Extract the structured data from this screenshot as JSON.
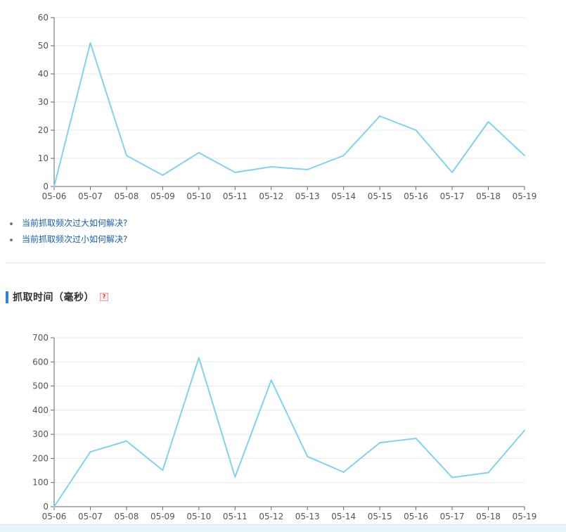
{
  "charts": {
    "crawl_frequency": {
      "type": "line",
      "x": [
        "05-06",
        "05-07",
        "05-08",
        "05-09",
        "05-10",
        "05-11",
        "05-12",
        "05-13",
        "05-14",
        "05-15",
        "05-16",
        "05-17",
        "05-18",
        "05-19"
      ],
      "series": [
        {
          "values": [
            0,
            51,
            11,
            4,
            12,
            5,
            7,
            6,
            11,
            25,
            20,
            5,
            23,
            11
          ]
        }
      ],
      "y_ticks": [
        0,
        10,
        20,
        30,
        40,
        50,
        60
      ],
      "ylim": [
        0,
        60
      ],
      "grid": true,
      "line_color": "#7fd3f1"
    },
    "crawl_time": {
      "type": "line",
      "x": [
        "05-06",
        "05-07",
        "05-08",
        "05-09",
        "05-10",
        "05-11",
        "05-12",
        "05-13",
        "05-14",
        "05-15",
        "05-16",
        "05-17",
        "05-18",
        "05-19"
      ],
      "series": [
        {
          "values": [
            0,
            227,
            272,
            151,
            617,
            123,
            524,
            208,
            143,
            265,
            283,
            121,
            141,
            316
          ]
        }
      ],
      "y_ticks": [
        0,
        100,
        200,
        300,
        400,
        500,
        600,
        700
      ],
      "ylim": [
        0,
        700
      ],
      "grid": true,
      "line_color": "#7fd3f1"
    }
  },
  "chart_data": [
    {
      "type": "line",
      "x": [
        "05-06",
        "05-07",
        "05-08",
        "05-09",
        "05-10",
        "05-11",
        "05-12",
        "05-13",
        "05-14",
        "05-15",
        "05-16",
        "05-17",
        "05-18",
        "05-19"
      ],
      "series": [
        {
          "values": [
            0,
            51,
            11,
            4,
            12,
            5,
            7,
            6,
            11,
            25,
            20,
            5,
            23,
            11
          ]
        }
      ],
      "ylim": [
        0,
        60
      ],
      "grid": true
    },
    {
      "type": "line",
      "title": "抓取时间（毫秒）",
      "x": [
        "05-06",
        "05-07",
        "05-08",
        "05-09",
        "05-10",
        "05-11",
        "05-12",
        "05-13",
        "05-14",
        "05-15",
        "05-16",
        "05-17",
        "05-18",
        "05-19"
      ],
      "series": [
        {
          "values": [
            0,
            227,
            272,
            151,
            617,
            123,
            524,
            208,
            143,
            265,
            283,
            121,
            141,
            316
          ]
        }
      ],
      "ylim": [
        0,
        700
      ],
      "grid": true
    }
  ],
  "help_links": [
    {
      "label": "当前抓取频次过大如何解决?"
    },
    {
      "label": "当前抓取频次过小如何解决?"
    }
  ],
  "section": {
    "title": "抓取时间（毫秒）",
    "help_icon": "question-icon",
    "help_glyph": "?"
  },
  "colors": {
    "accent": "#2a86d8",
    "link": "#1a5fa8",
    "line": "#7fd3f1"
  }
}
